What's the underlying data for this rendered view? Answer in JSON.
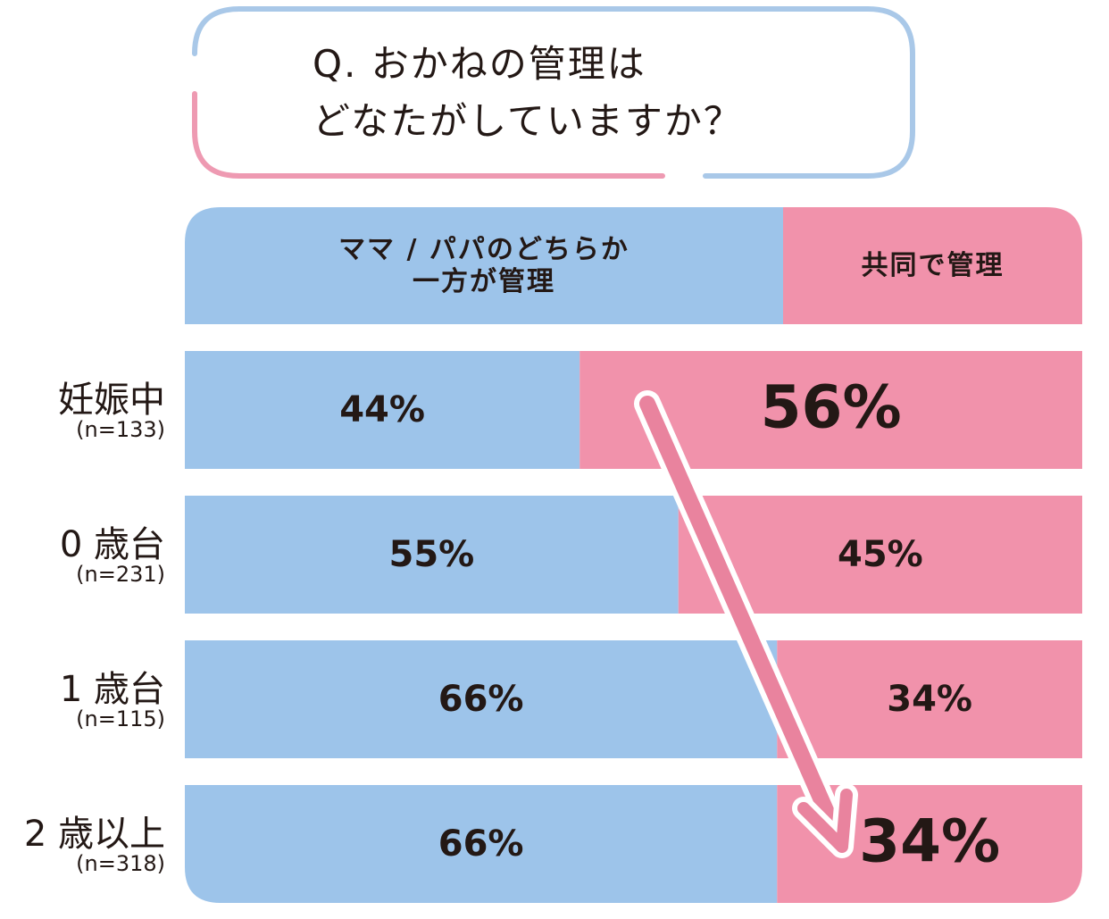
{
  "chart_data": {
    "type": "stacked-bar",
    "title": [
      "Q. おかねの管理は",
      "どなたがしていますか？"
    ],
    "categories": [
      "妊娠中",
      "0 歳台",
      "1 歳台",
      "2 歳以上"
    ],
    "sample_labels": [
      "(n=133)",
      "(n=231)",
      "(n=115)",
      "(n=318)"
    ],
    "series": [
      {
        "name": "ママ / パパのどちらか\n一方が管理",
        "color": "#9dc4ea",
        "values": [
          44,
          55,
          66,
          66
        ],
        "value_labels": [
          "44%",
          "55%",
          "66%",
          "66%"
        ]
      },
      {
        "name": "共同で管理",
        "color": "#f192ab",
        "values": [
          56,
          45,
          34,
          34
        ],
        "value_labels": [
          "56%",
          "45%",
          "34%",
          "34%"
        ]
      }
    ],
    "xlim": [
      0,
      100
    ]
  }
}
